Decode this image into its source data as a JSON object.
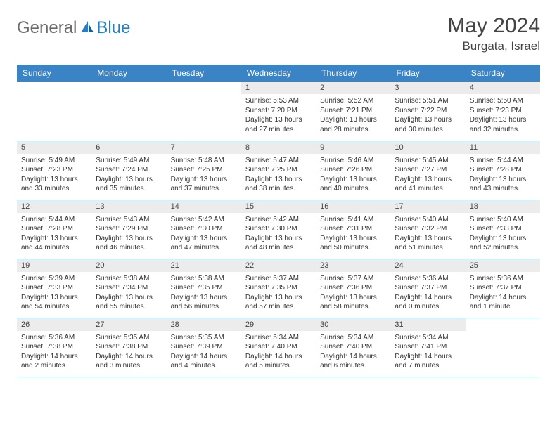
{
  "brand": {
    "part1": "General",
    "part2": "Blue"
  },
  "title": "May 2024",
  "location": "Burgata, Israel",
  "colors": {
    "header_bg": "#3a84c6",
    "header_text": "#ffffff",
    "daynum_bg": "#ececec",
    "border": "#3a6a9a",
    "brand_gray": "#6b6b6b",
    "brand_blue": "#2a7dc0",
    "body_text": "#333333",
    "title_text": "#444444",
    "page_bg": "#ffffff"
  },
  "day_headers": [
    "Sunday",
    "Monday",
    "Tuesday",
    "Wednesday",
    "Thursday",
    "Friday",
    "Saturday"
  ],
  "weeks": [
    [
      {
        "empty": true
      },
      {
        "empty": true
      },
      {
        "empty": true
      },
      {
        "day": "1",
        "sunrise": "5:53 AM",
        "sunset": "7:20 PM",
        "daylight": "13 hours and 27 minutes."
      },
      {
        "day": "2",
        "sunrise": "5:52 AM",
        "sunset": "7:21 PM",
        "daylight": "13 hours and 28 minutes."
      },
      {
        "day": "3",
        "sunrise": "5:51 AM",
        "sunset": "7:22 PM",
        "daylight": "13 hours and 30 minutes."
      },
      {
        "day": "4",
        "sunrise": "5:50 AM",
        "sunset": "7:23 PM",
        "daylight": "13 hours and 32 minutes."
      }
    ],
    [
      {
        "day": "5",
        "sunrise": "5:49 AM",
        "sunset": "7:23 PM",
        "daylight": "13 hours and 33 minutes."
      },
      {
        "day": "6",
        "sunrise": "5:49 AM",
        "sunset": "7:24 PM",
        "daylight": "13 hours and 35 minutes."
      },
      {
        "day": "7",
        "sunrise": "5:48 AM",
        "sunset": "7:25 PM",
        "daylight": "13 hours and 37 minutes."
      },
      {
        "day": "8",
        "sunrise": "5:47 AM",
        "sunset": "7:25 PM",
        "daylight": "13 hours and 38 minutes."
      },
      {
        "day": "9",
        "sunrise": "5:46 AM",
        "sunset": "7:26 PM",
        "daylight": "13 hours and 40 minutes."
      },
      {
        "day": "10",
        "sunrise": "5:45 AM",
        "sunset": "7:27 PM",
        "daylight": "13 hours and 41 minutes."
      },
      {
        "day": "11",
        "sunrise": "5:44 AM",
        "sunset": "7:28 PM",
        "daylight": "13 hours and 43 minutes."
      }
    ],
    [
      {
        "day": "12",
        "sunrise": "5:44 AM",
        "sunset": "7:28 PM",
        "daylight": "13 hours and 44 minutes."
      },
      {
        "day": "13",
        "sunrise": "5:43 AM",
        "sunset": "7:29 PM",
        "daylight": "13 hours and 46 minutes."
      },
      {
        "day": "14",
        "sunrise": "5:42 AM",
        "sunset": "7:30 PM",
        "daylight": "13 hours and 47 minutes."
      },
      {
        "day": "15",
        "sunrise": "5:42 AM",
        "sunset": "7:30 PM",
        "daylight": "13 hours and 48 minutes."
      },
      {
        "day": "16",
        "sunrise": "5:41 AM",
        "sunset": "7:31 PM",
        "daylight": "13 hours and 50 minutes."
      },
      {
        "day": "17",
        "sunrise": "5:40 AM",
        "sunset": "7:32 PM",
        "daylight": "13 hours and 51 minutes."
      },
      {
        "day": "18",
        "sunrise": "5:40 AM",
        "sunset": "7:33 PM",
        "daylight": "13 hours and 52 minutes."
      }
    ],
    [
      {
        "day": "19",
        "sunrise": "5:39 AM",
        "sunset": "7:33 PM",
        "daylight": "13 hours and 54 minutes."
      },
      {
        "day": "20",
        "sunrise": "5:38 AM",
        "sunset": "7:34 PM",
        "daylight": "13 hours and 55 minutes."
      },
      {
        "day": "21",
        "sunrise": "5:38 AM",
        "sunset": "7:35 PM",
        "daylight": "13 hours and 56 minutes."
      },
      {
        "day": "22",
        "sunrise": "5:37 AM",
        "sunset": "7:35 PM",
        "daylight": "13 hours and 57 minutes."
      },
      {
        "day": "23",
        "sunrise": "5:37 AM",
        "sunset": "7:36 PM",
        "daylight": "13 hours and 58 minutes."
      },
      {
        "day": "24",
        "sunrise": "5:36 AM",
        "sunset": "7:37 PM",
        "daylight": "14 hours and 0 minutes."
      },
      {
        "day": "25",
        "sunrise": "5:36 AM",
        "sunset": "7:37 PM",
        "daylight": "14 hours and 1 minute."
      }
    ],
    [
      {
        "day": "26",
        "sunrise": "5:36 AM",
        "sunset": "7:38 PM",
        "daylight": "14 hours and 2 minutes."
      },
      {
        "day": "27",
        "sunrise": "5:35 AM",
        "sunset": "7:38 PM",
        "daylight": "14 hours and 3 minutes."
      },
      {
        "day": "28",
        "sunrise": "5:35 AM",
        "sunset": "7:39 PM",
        "daylight": "14 hours and 4 minutes."
      },
      {
        "day": "29",
        "sunrise": "5:34 AM",
        "sunset": "7:40 PM",
        "daylight": "14 hours and 5 minutes."
      },
      {
        "day": "30",
        "sunrise": "5:34 AM",
        "sunset": "7:40 PM",
        "daylight": "14 hours and 6 minutes."
      },
      {
        "day": "31",
        "sunrise": "5:34 AM",
        "sunset": "7:41 PM",
        "daylight": "14 hours and 7 minutes."
      },
      {
        "empty": true
      }
    ]
  ],
  "labels": {
    "sunrise_prefix": "Sunrise: ",
    "sunset_prefix": "Sunset: ",
    "daylight_prefix": "Daylight: "
  },
  "typography": {
    "title_fontsize": 30,
    "location_fontsize": 17,
    "header_fontsize": 12,
    "daynum_fontsize": 11,
    "content_fontsize": 10
  }
}
